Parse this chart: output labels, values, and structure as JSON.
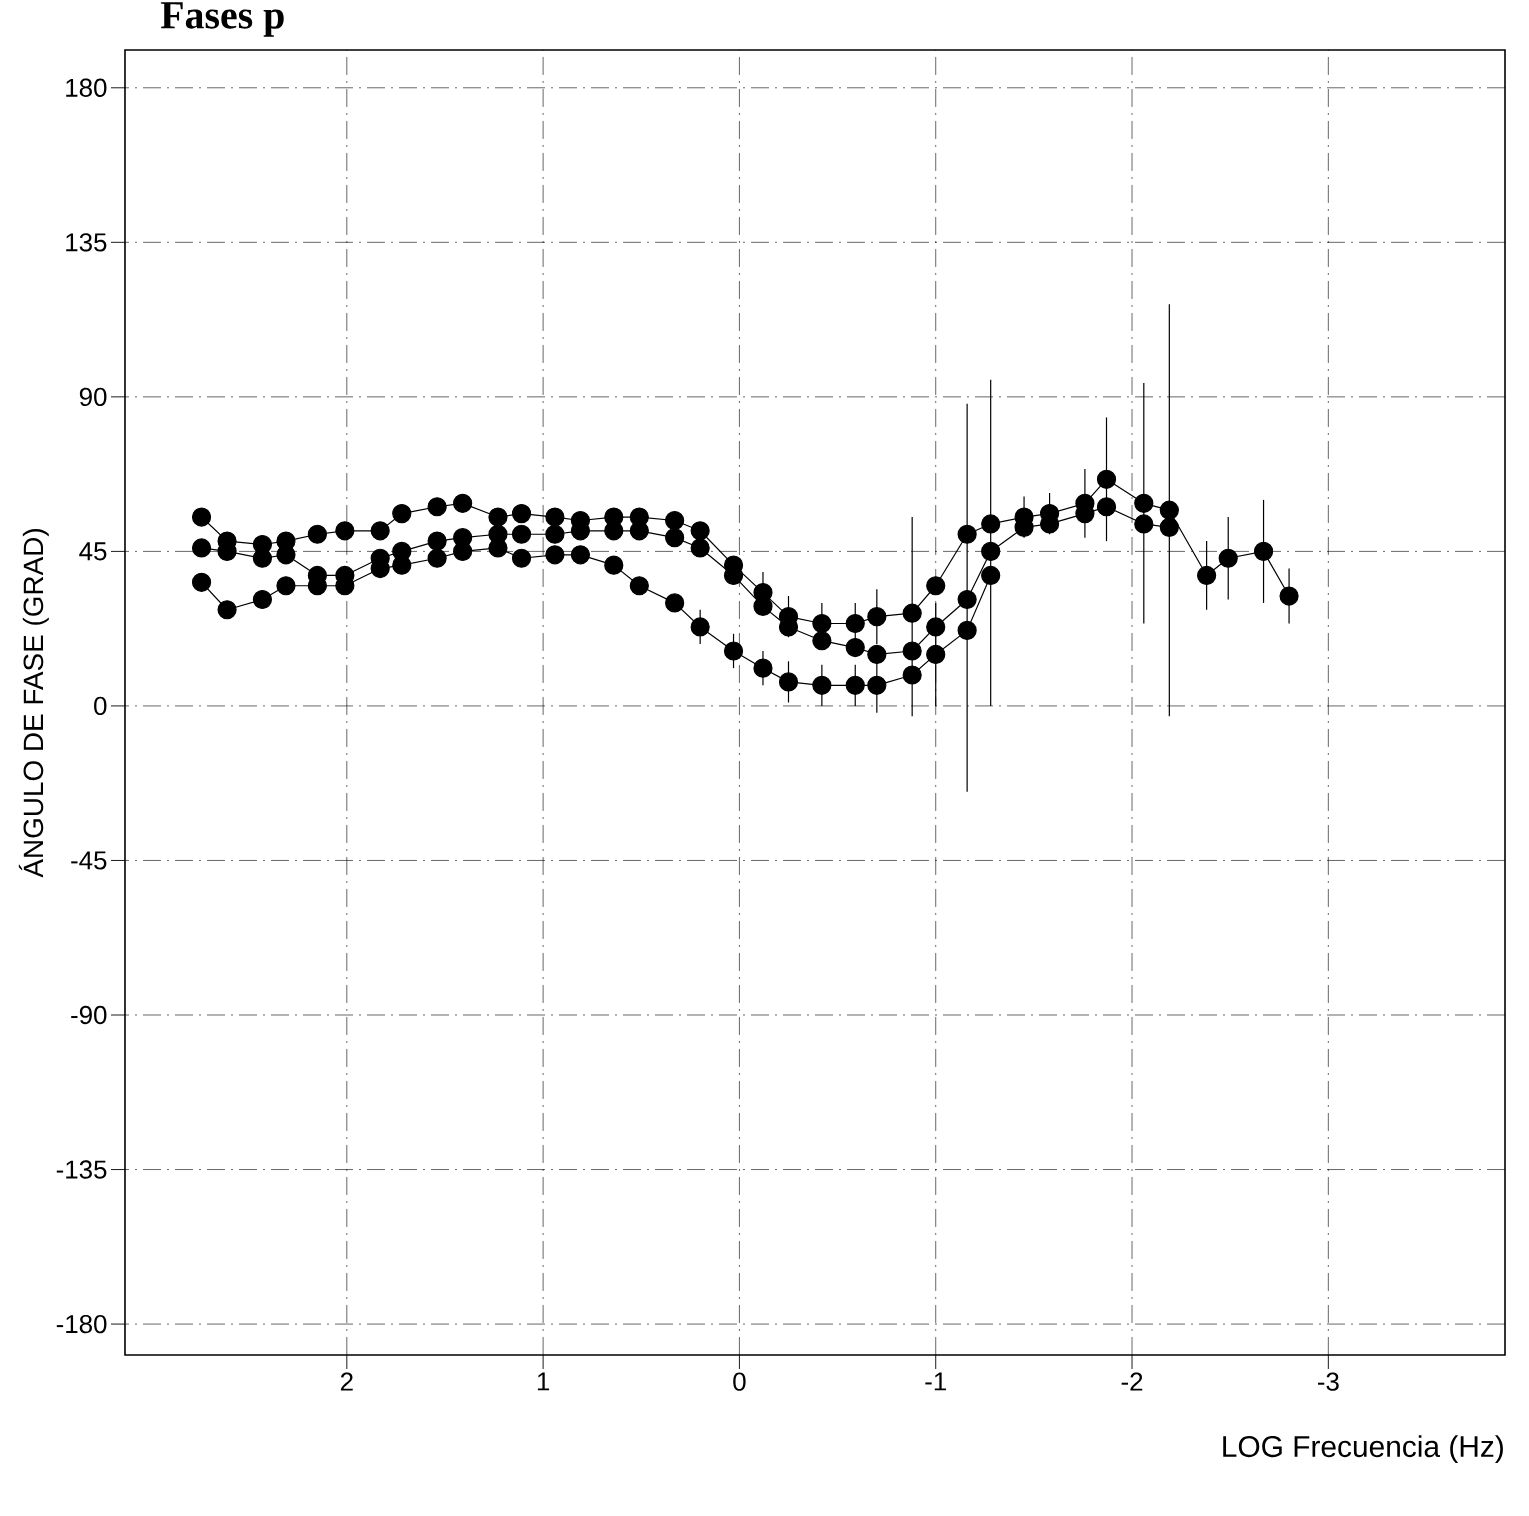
{
  "chart_data": {
    "type": "line",
    "title": "Fases p",
    "xlabel": "LOG Frecuencia (Hz)",
    "ylabel": "ÁNGULO DE FASE (GRAD)",
    "xlim": [
      3.13,
      -3.9
    ],
    "ylim": [
      -189,
      191
    ],
    "xticks": [
      2,
      1,
      0,
      -1,
      -2,
      -3
    ],
    "yticks": [
      180,
      135,
      90,
      45,
      0,
      -45,
      -90,
      -135,
      -180
    ],
    "grid": true,
    "marker": "circle",
    "line_style": "solid",
    "series": [
      {
        "color": "#000000",
        "x": [
          2.74,
          2.61,
          2.43,
          2.31,
          2.15,
          2.01,
          1.83,
          1.72,
          1.54,
          1.41,
          1.23,
          1.11,
          0.94,
          0.81,
          0.64,
          0.51,
          0.33,
          0.2,
          0.03,
          -0.12,
          -0.25,
          -0.42,
          -0.59,
          -0.7,
          -0.88,
          -1.0,
          -1.16,
          -1.28,
          -1.45,
          -1.58,
          -1.76,
          -1.87,
          -2.06,
          -2.19,
          -2.38,
          -2.49,
          -2.67,
          -2.8
        ],
        "values": [
          55,
          48,
          47,
          48,
          50,
          51,
          51,
          56,
          58,
          59,
          55,
          56,
          55,
          54,
          55,
          55,
          54,
          51,
          41,
          33,
          26,
          24,
          24,
          26,
          27,
          35,
          50,
          53,
          55,
          56,
          59,
          66,
          59,
          57,
          38,
          43,
          45,
          32
        ],
        "errors": [
          null,
          null,
          null,
          null,
          null,
          null,
          null,
          null,
          null,
          null,
          null,
          null,
          null,
          null,
          null,
          null,
          null,
          null,
          null,
          6,
          6,
          6,
          6,
          8,
          null,
          null,
          null,
          null,
          6,
          6,
          10,
          18,
          35,
          60,
          10,
          12,
          15,
          8
        ]
      },
      {
        "color": "#000000",
        "x": [
          2.74,
          2.61,
          2.43,
          2.31,
          2.15,
          2.01,
          1.83,
          1.72,
          1.54,
          1.41,
          1.23,
          1.11,
          0.94,
          0.81,
          0.64,
          0.51,
          0.33,
          0.2,
          0.03,
          -0.12,
          -0.25,
          -0.42,
          -0.59,
          -0.7,
          -0.88,
          -1.0,
          -1.16,
          -1.28,
          -1.45,
          -1.58,
          -1.76,
          -1.87,
          -2.06,
          -2.19
        ],
        "values": [
          46,
          45,
          43,
          44,
          38,
          38,
          43,
          45,
          48,
          49,
          50,
          50,
          50,
          51,
          51,
          51,
          49,
          46,
          38,
          29,
          23,
          19,
          17,
          15,
          16,
          23,
          31,
          45,
          52,
          53,
          56,
          58,
          53,
          52
        ]
      },
      {
        "color": "#000000",
        "x": [
          2.74,
          2.61,
          2.43,
          2.31,
          2.15,
          2.01,
          1.83,
          1.72,
          1.54,
          1.41,
          1.23,
          1.11,
          0.94,
          0.81,
          0.64,
          0.51,
          0.33,
          0.2,
          0.03,
          -0.12,
          -0.25,
          -0.42,
          -0.59,
          -0.7,
          -0.88,
          -1.0,
          -1.16,
          -1.28
        ],
        "values": [
          36,
          28,
          31,
          35,
          35,
          35,
          40,
          41,
          43,
          45,
          46,
          43,
          44,
          44,
          41,
          35,
          30,
          23,
          16,
          11,
          7,
          6,
          6,
          6,
          9,
          15,
          22,
          38
        ],
        "errors": [
          null,
          null,
          null,
          null,
          null,
          null,
          null,
          null,
          null,
          null,
          null,
          null,
          null,
          null,
          null,
          null,
          null,
          5,
          5,
          5,
          6,
          6,
          6,
          8,
          [
            -3,
            55
          ],
          15,
          [
            -25,
            88
          ],
          [
            0,
            95
          ]
        ]
      }
    ]
  }
}
